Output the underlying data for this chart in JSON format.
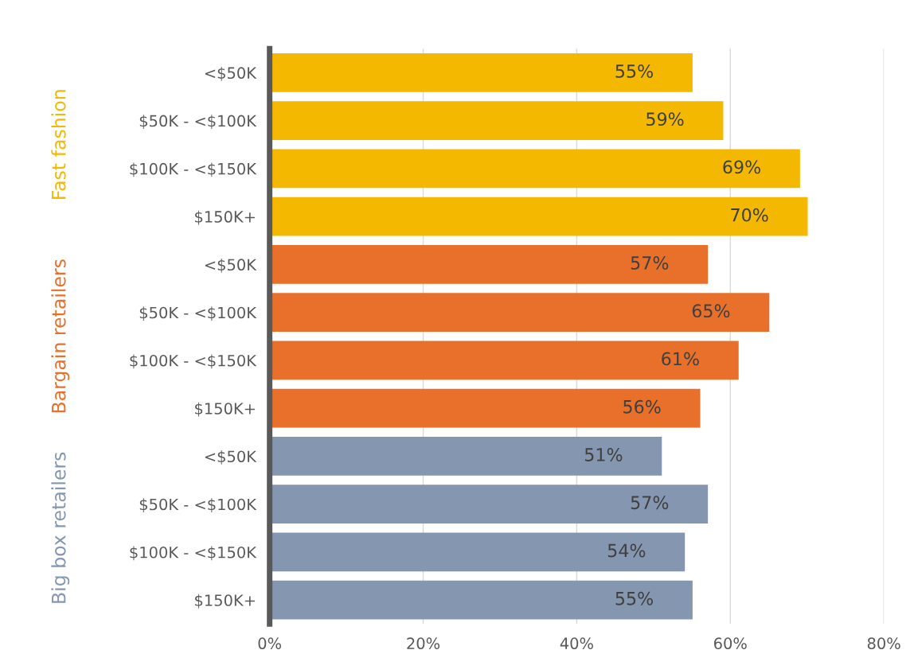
{
  "chart_data": {
    "type": "bar",
    "orientation": "horizontal",
    "categories": [
      "<$50K",
      "$50K - <$100K",
      "$100K - <$150K",
      "$150K+",
      "<$50K",
      "$50K - <$100K",
      "$100K - <$150K",
      "$150K+",
      "<$50K",
      "$50K - <$100K",
      "$100K - <$150K",
      "$150K+"
    ],
    "values": [
      55,
      59,
      69,
      70,
      57,
      65,
      61,
      56,
      51,
      57,
      54,
      55
    ],
    "value_labels": [
      "55%",
      "59%",
      "69%",
      "70%",
      "57%",
      "65%",
      "61%",
      "56%",
      "51%",
      "57%",
      "54%",
      "55%"
    ],
    "colors": [
      "#f5b800",
      "#f5b800",
      "#f5b800",
      "#f5b800",
      "#e8702a",
      "#e8702a",
      "#e8702a",
      "#e8702a",
      "#8596b0",
      "#8596b0",
      "#8596b0",
      "#8596b0"
    ],
    "annotations": [
      "Fast fashion",
      "Bargain retailers",
      "Big box retailers"
    ],
    "xlim": [
      0,
      80
    ],
    "xticks": [
      {
        "value": 0,
        "label": "0%"
      },
      {
        "value": 20,
        "label": "20%"
      },
      {
        "value": 40,
        "label": "40%"
      },
      {
        "value": 60,
        "label": "60%"
      },
      {
        "value": 80,
        "label": "80%"
      }
    ],
    "grid": "x"
  }
}
